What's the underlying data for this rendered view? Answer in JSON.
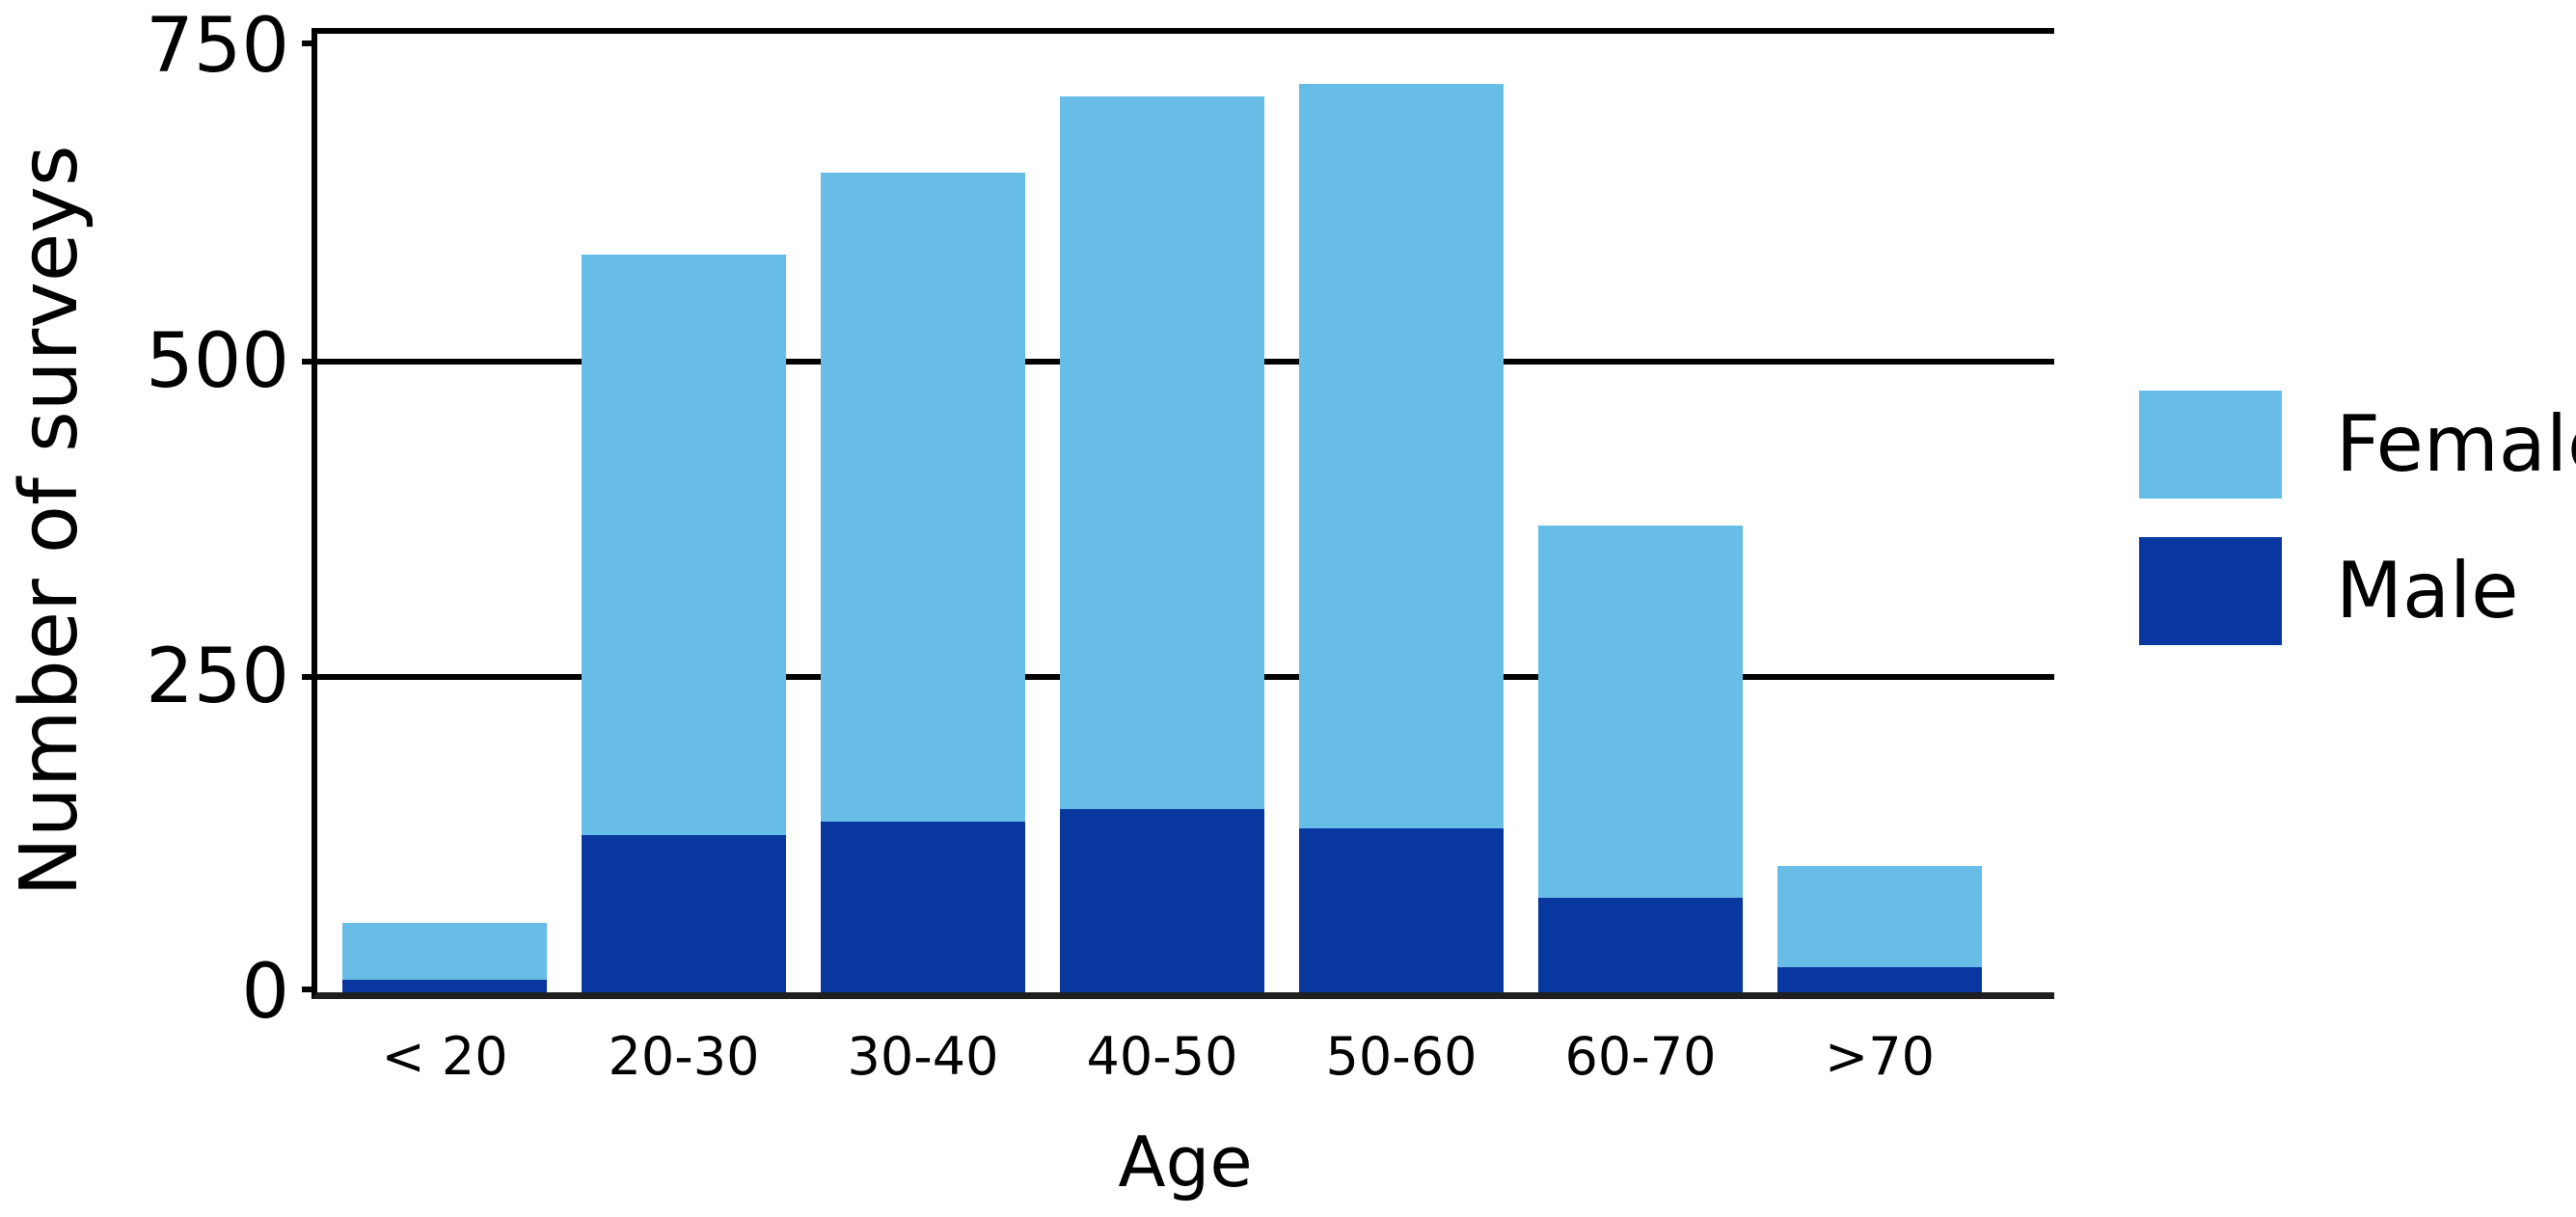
{
  "chart_data": {
    "type": "bar",
    "stacked": true,
    "title": "",
    "xlabel": "Age",
    "ylabel": "Number of surveys",
    "categories": [
      "< 20",
      "20-30",
      "30-40",
      "40-50",
      "50-60",
      "60-70",
      ">70"
    ],
    "series": [
      {
        "name": "Male",
        "color": "#0937a0",
        "values": [
          10,
          125,
          135,
          145,
          130,
          75,
          20
        ]
      },
      {
        "name": "Female",
        "color": "#67bde6",
        "values": [
          45,
          460,
          515,
          565,
          590,
          295,
          80
        ]
      }
    ],
    "stack_totals": [
      55,
      585,
      650,
      710,
      720,
      370,
      100
    ],
    "ylim": [
      0,
      760
    ],
    "y_ticks": [
      0,
      250,
      500,
      750
    ],
    "y_tick_labels": [
      "0",
      "250",
      "500",
      "750"
    ],
    "gridline_values": [
      250,
      500
    ],
    "grid": "horizontal",
    "legend_position": "right",
    "legend_order": [
      "Female",
      "Male"
    ],
    "axis_color": "#000000",
    "baseline_color": "#1f1f1f",
    "background_color": "#ffffff"
  }
}
